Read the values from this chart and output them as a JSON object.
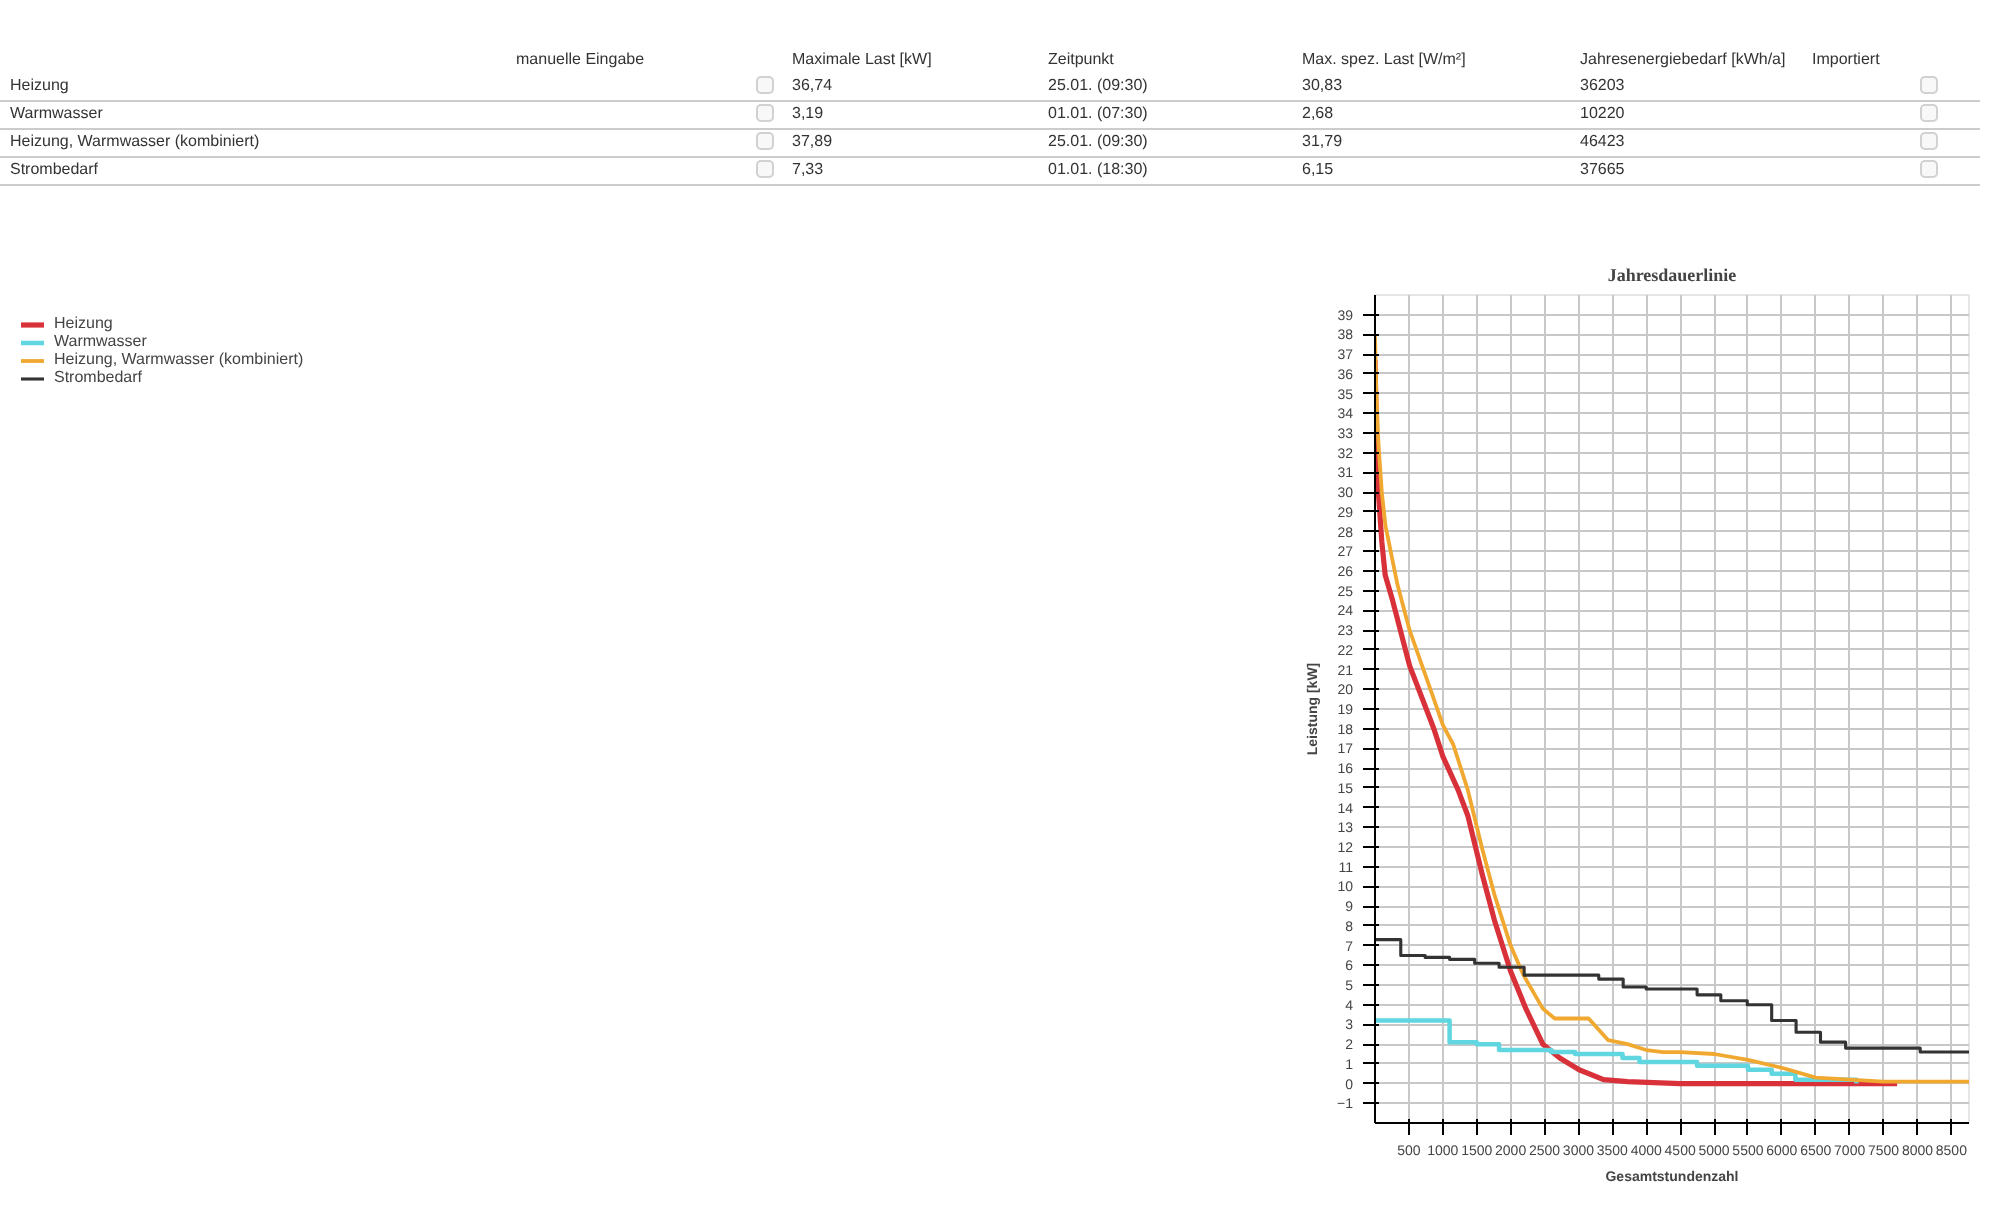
{
  "chart_data": {
    "type": "line",
    "title": "Jahresdauerlinie",
    "xlabel": "Gesamtstundenzahl",
    "ylabel": "Leistung [kW]",
    "xlim": [
      0,
      8760
    ],
    "xticks": [
      500,
      1000,
      1500,
      2000,
      2500,
      3000,
      3500,
      4000,
      4500,
      5000,
      5500,
      6000,
      6500,
      7000,
      7500,
      8000,
      8500
    ],
    "ylim": [
      -2,
      40
    ],
    "yticks": [
      -1,
      0,
      1,
      2,
      3,
      4,
      5,
      6,
      7,
      8,
      9,
      10,
      11,
      12,
      13,
      14,
      15,
      16,
      17,
      18,
      19,
      20,
      21,
      22,
      23,
      24,
      25,
      26,
      27,
      28,
      29,
      30,
      31,
      32,
      33,
      34,
      35,
      36,
      37,
      38,
      39
    ],
    "grid": true,
    "legend": "left",
    "marker": "none",
    "line_style": "solid",
    "annotations": [
      "manuelle Eingabe",
      "Maximale Last [kW]",
      "Zeitpunkt",
      "Max. spez. Last [W/m²]",
      "Jahresenergiebedarf [kWh/a]",
      "Importiert",
      "Heizung",
      "36,74",
      "25.01. (09:30)",
      "30,83",
      "36203",
      "Warmwasser",
      "3,19",
      "01.01. (07:30)",
      "2,68",
      "10220",
      "Heizung, Warmwasser  (kombiniert)",
      "37,89",
      "25.01. (09:30)",
      "31,79",
      "46423",
      "Strombedarf",
      "7,33",
      "01.01. (18:30)",
      "6,15",
      "37665"
    ],
    "series": [
      {
        "name": "Heizung",
        "color": "#d9313a",
        "x": [
          0,
          20,
          50,
          100,
          150,
          260,
          510,
          868,
          1000,
          1225,
          1368,
          1582,
          1760,
          2000,
          2225,
          2475,
          2725,
          3010,
          3370,
          3725,
          4500,
          7700
        ],
        "values": [
          36.7,
          33,
          30,
          27.5,
          25.8,
          24.5,
          21.2,
          18,
          16.6,
          14.9,
          13.6,
          10.6,
          8.3,
          5.7,
          3.8,
          2.0,
          1.3,
          0.7,
          0.2,
          0.1,
          0,
          0
        ]
      },
      {
        "name": "Warmwasser",
        "color": "#5fd6e0",
        "type": "step",
        "x": [
          0,
          1100,
          1500,
          1830,
          2600,
          2950,
          3650,
          3900,
          4750,
          5500,
          5850,
          6200,
          7100
        ],
        "values": [
          3.2,
          2.1,
          2.0,
          1.7,
          1.6,
          1.5,
          1.3,
          1.1,
          0.9,
          0.7,
          0.5,
          0.2,
          0
        ]
      },
      {
        "name": "Heizung, Warmwasser (kombiniert)",
        "color": "#f0a830",
        "x": [
          0,
          20,
          50,
          100,
          154,
          332,
          510,
          868,
          1000,
          1154,
          1368,
          1582,
          1760,
          2000,
          2190,
          2475,
          2650,
          3150,
          3440,
          3725,
          4000,
          4250,
          4500,
          5000,
          5500,
          6000,
          6500,
          7000,
          7500,
          8760
        ],
        "values": [
          37.9,
          35,
          32.5,
          30,
          28.3,
          25.3,
          23,
          19.5,
          18.2,
          17.2,
          14.9,
          11.9,
          9.6,
          7.0,
          5.5,
          3.8,
          3.3,
          3.3,
          2.2,
          2.0,
          1.7,
          1.6,
          1.6,
          1.5,
          1.2,
          0.8,
          0.3,
          0.2,
          0.1,
          0.1
        ]
      },
      {
        "name": "Strombedarf",
        "color": "#333333",
        "type": "step",
        "x": [
          0,
          380,
          740,
          1100,
          1470,
          1830,
          2200,
          3300,
          3660,
          4000,
          4750,
          5100,
          5490,
          5850,
          6210,
          6570,
          6940,
          8040,
          8760
        ],
        "values": [
          7.3,
          6.5,
          6.4,
          6.3,
          6.1,
          5.9,
          5.5,
          5.3,
          4.9,
          4.8,
          4.5,
          4.2,
          4.0,
          3.2,
          2.6,
          2.1,
          1.8,
          1.6,
          1.6
        ]
      }
    ]
  }
}
